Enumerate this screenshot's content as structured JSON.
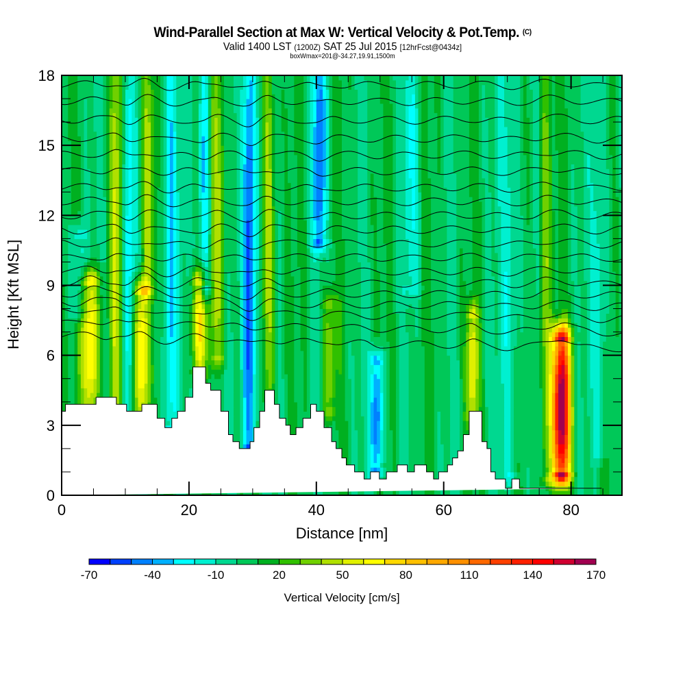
{
  "chart_data": {
    "type": "heatmap",
    "title": "Wind-Parallel Section at Max W: Vertical Velocity & Pot.Temp.",
    "copyright_mark": "(C)",
    "subtitle": {
      "valid_prefix": "Valid 1400 LST",
      "utc": "(1200Z)",
      "date": "SAT 25 Jul 2015",
      "forecast": "[12hrFcst@0434z]"
    },
    "info_line": "boxWmax=201@-34.27,19.91,1500m",
    "xlabel": "Distance [nm]",
    "ylabel": "Height [Kft MSL]",
    "xlim": [
      0,
      88
    ],
    "ylim": [
      0,
      18
    ],
    "x_ticks": [
      "0",
      "20",
      "40",
      "60",
      "80"
    ],
    "x_tick_values": [
      0,
      20,
      40,
      60,
      80
    ],
    "y_ticks": [
      "0",
      "3",
      "6",
      "9",
      "12",
      "15",
      "18"
    ],
    "y_tick_values": [
      0,
      3,
      6,
      9,
      12,
      15,
      18
    ],
    "colorbar": {
      "label": "Vertical Velocity [cm/s]",
      "tick_labels": [
        "-70",
        "-40",
        "-10",
        "20",
        "50",
        "80",
        "110",
        "140",
        "170"
      ],
      "tick_values": [
        -70,
        -40,
        -10,
        20,
        50,
        80,
        110,
        140,
        170
      ],
      "min": -70,
      "max": 170,
      "step": 10,
      "colors": [
        "#0000ff",
        "#0040ff",
        "#0080ff",
        "#00b0ff",
        "#00ffff",
        "#00f0d0",
        "#00d890",
        "#00c858",
        "#00b020",
        "#30c000",
        "#70d000",
        "#b0e000",
        "#e0f000",
        "#ffff00",
        "#ffd800",
        "#ffc000",
        "#ffa800",
        "#ff9000",
        "#ff6800",
        "#ff4000",
        "#ff2000",
        "#ff0000",
        "#d00030",
        "#a00050"
      ]
    },
    "background_w": 5,
    "updraft_streaks": [
      {
        "x": 4.5,
        "w": 75,
        "ybot": 3.8,
        "ytop": 9.0,
        "half_width": 1.4
      },
      {
        "x": 8.5,
        "w": 40,
        "ybot": 3.8,
        "ytop": 18,
        "half_width": 0.9
      },
      {
        "x": 12.5,
        "w": 80,
        "ybot": 3.5,
        "ytop": 8.5,
        "half_width": 1.2
      },
      {
        "x": 13.5,
        "w": 45,
        "ybot": 9.0,
        "ytop": 18,
        "half_width": 1.0
      },
      {
        "x": 21.5,
        "w": 60,
        "ybot": 5.5,
        "ytop": 9.0,
        "half_width": 1.1
      },
      {
        "x": 24.5,
        "w": 40,
        "ybot": 6.0,
        "ytop": 18,
        "half_width": 1.3
      },
      {
        "x": 32.5,
        "w": 45,
        "ybot": 4.5,
        "ytop": 18,
        "half_width": 1.0
      },
      {
        "x": 42,
        "w": 35,
        "ybot": 3.8,
        "ytop": 8.0,
        "half_width": 1.0
      },
      {
        "x": 64.5,
        "w": 55,
        "ybot": 3.6,
        "ytop": 7.5,
        "half_width": 0.9
      },
      {
        "x": 78.5,
        "w": 165,
        "ybot": 1.0,
        "ytop": 6.5,
        "half_width": 1.4
      },
      {
        "x": 76,
        "w": 35,
        "ybot": 0.8,
        "ytop": 18,
        "half_width": 1.0
      }
    ],
    "downdraft_streaks": [
      {
        "x": 2.5,
        "w": -30,
        "ybot": 8.0,
        "ytop": 11.0,
        "half_width": 1.2
      },
      {
        "x": 10.5,
        "w": -35,
        "ybot": 3.6,
        "ytop": 18,
        "half_width": 0.9
      },
      {
        "x": 17,
        "w": -40,
        "ybot": 3.0,
        "ytop": 18,
        "half_width": 1.2
      },
      {
        "x": 22.5,
        "w": -45,
        "ybot": 9.0,
        "ytop": 18,
        "half_width": 1.0
      },
      {
        "x": 29.5,
        "w": -70,
        "ybot": 2.2,
        "ytop": 18,
        "half_width": 1.1
      },
      {
        "x": 40.5,
        "w": -55,
        "ybot": 11.0,
        "ytop": 18,
        "half_width": 1.0
      },
      {
        "x": 49.5,
        "w": -60,
        "ybot": 1.2,
        "ytop": 5.5,
        "half_width": 1.0
      },
      {
        "x": 55,
        "w": -20,
        "ybot": 9.0,
        "ytop": 18,
        "half_width": 1.3
      },
      {
        "x": 70.5,
        "w": -25,
        "ybot": 1.0,
        "ytop": 18,
        "half_width": 1.5
      },
      {
        "x": 84.5,
        "w": -25,
        "ybot": 2.0,
        "ytop": 18,
        "half_width": 1.2
      }
    ],
    "terrain": {
      "x": [
        0,
        0.6,
        0.6,
        5.4,
        5.4,
        8.6,
        8.6,
        10.2,
        10.2,
        12.6,
        12.6,
        15.0,
        15.0,
        16.2,
        16.2,
        17.3,
        17.3,
        18.2,
        18.2,
        19.4,
        19.4,
        20.6,
        20.6,
        22.6,
        22.6,
        23.4,
        23.4,
        25.0,
        25.0,
        26.2,
        26.2,
        26.9,
        26.9,
        27.9,
        27.9,
        29.6,
        29.6,
        30.2,
        30.2,
        31.1,
        31.1,
        31.9,
        31.9,
        33.4,
        33.4,
        34.2,
        34.2,
        35.2,
        35.2,
        35.9,
        35.9,
        36.8,
        36.8,
        37.9,
        37.9,
        39.1,
        39.1,
        40.0,
        40.0,
        41.2,
        41.2,
        42.4,
        42.4,
        43.1,
        43.1,
        44.0,
        44.0,
        44.7,
        44.7,
        46.0,
        46.0,
        47.5,
        47.5,
        48.5,
        48.5,
        49.9,
        49.9,
        51.0,
        51.0,
        52.7,
        52.7,
        54.3,
        54.3,
        55.4,
        55.4,
        57.3,
        57.3,
        58.4,
        58.4,
        59.2,
        59.2,
        60.6,
        60.6,
        61.4,
        61.4,
        62.2,
        62.2,
        63.1,
        63.1,
        64.0,
        64.0,
        66.0,
        66.0,
        66.8,
        66.8,
        67.4,
        67.4,
        68.1,
        68.1,
        69.7,
        69.7,
        70.7,
        70.7,
        71.9,
        71.9,
        84.8,
        84.8,
        88
      ],
      "y": [
        3.6,
        3.6,
        3.9,
        3.9,
        4.2,
        4.2,
        3.9,
        3.9,
        3.6,
        3.6,
        3.9,
        3.9,
        3.3,
        3.3,
        2.9,
        2.9,
        3.3,
        3.3,
        3.6,
        3.6,
        4.2,
        4.2,
        5.5,
        5.5,
        4.8,
        4.8,
        4.5,
        4.5,
        3.6,
        3.6,
        2.6,
        2.6,
        2.3,
        2.3,
        2.0,
        2.0,
        2.3,
        2.3,
        2.9,
        2.9,
        3.6,
        3.6,
        4.5,
        4.5,
        3.9,
        3.9,
        3.3,
        3.3,
        3.0,
        3.0,
        2.6,
        2.6,
        2.9,
        2.9,
        3.3,
        3.3,
        3.9,
        3.9,
        3.6,
        3.6,
        2.9,
        2.9,
        2.3,
        2.3,
        2.0,
        2.0,
        1.6,
        1.6,
        1.3,
        1.3,
        1.0,
        1.0,
        0.7,
        0.7,
        1.0,
        1.0,
        0.7,
        0.7,
        1.0,
        1.0,
        1.3,
        1.3,
        1.0,
        1.0,
        1.3,
        1.3,
        1.0,
        1.0,
        0.7,
        0.7,
        1.0,
        1.0,
        1.3,
        1.3,
        1.6,
        1.6,
        1.9,
        1.9,
        2.6,
        2.6,
        3.6,
        3.6,
        2.3,
        2.3,
        2.0,
        2.0,
        1.0,
        1.0,
        0.7,
        0.7,
        0.3,
        0.3,
        0.7,
        0.7,
        0.3,
        0.3
      ]
    },
    "isentropes_kft": [
      6.3,
      7.0,
      7.6,
      8.1,
      8.6,
      9.1,
      9.6,
      10.2,
      10.8,
      11.4,
      12.0,
      12.6,
      13.2,
      13.9,
      14.6,
      15.3,
      16.1,
      16.9,
      17.6
    ]
  }
}
